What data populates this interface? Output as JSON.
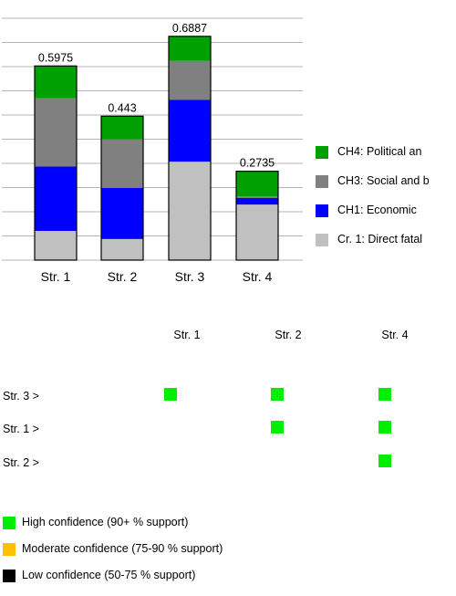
{
  "chart_data": {
    "type": "bar",
    "stacked": true,
    "categories": [
      "Str. 1",
      "Str. 2",
      "Str. 3",
      "Str. 4"
    ],
    "totals": [
      "0.5975",
      "0.443",
      "0.6887",
      "0.2735"
    ],
    "series": [
      {
        "name": "Cr. 1: Direct fatal",
        "color": "#c0c0c0",
        "values": [
          0.09,
          0.065,
          0.303,
          0.171
        ]
      },
      {
        "name": "CH1: Economic",
        "color": "#0000ff",
        "values": [
          0.198,
          0.157,
          0.19,
          0.02
        ]
      },
      {
        "name": "CH3: Social and b",
        "color": "#808080",
        "values": [
          0.21,
          0.15,
          0.12,
          0.005
        ]
      },
      {
        "name": "CH4: Political an",
        "color": "#00a000",
        "values": [
          0.0995,
          0.071,
          0.0757,
          0.0775
        ]
      }
    ],
    "legend_order": [
      3,
      2,
      1,
      0
    ],
    "ylim": [
      0,
      0.75
    ],
    "grid": true,
    "xlabel": "",
    "ylabel": ""
  },
  "matrix": {
    "columns": [
      "Str. 1",
      "Str. 2",
      "Str. 4"
    ],
    "rows": [
      {
        "label": "Str. 3  >",
        "cells": [
          "high",
          "high",
          "high"
        ]
      },
      {
        "label": "Str. 1  >",
        "cells": [
          null,
          "high",
          "high"
        ]
      },
      {
        "label": "Str. 2  >",
        "cells": [
          null,
          null,
          "high"
        ]
      }
    ]
  },
  "confidence_legend": [
    {
      "label": "High confidence (90+ % support)",
      "color": "#00ee00"
    },
    {
      "label": "Moderate confidence (75-90 % support)",
      "color": "#ffc000"
    },
    {
      "label": "Low confidence (50-75 % support)",
      "color": "#000000"
    }
  ]
}
